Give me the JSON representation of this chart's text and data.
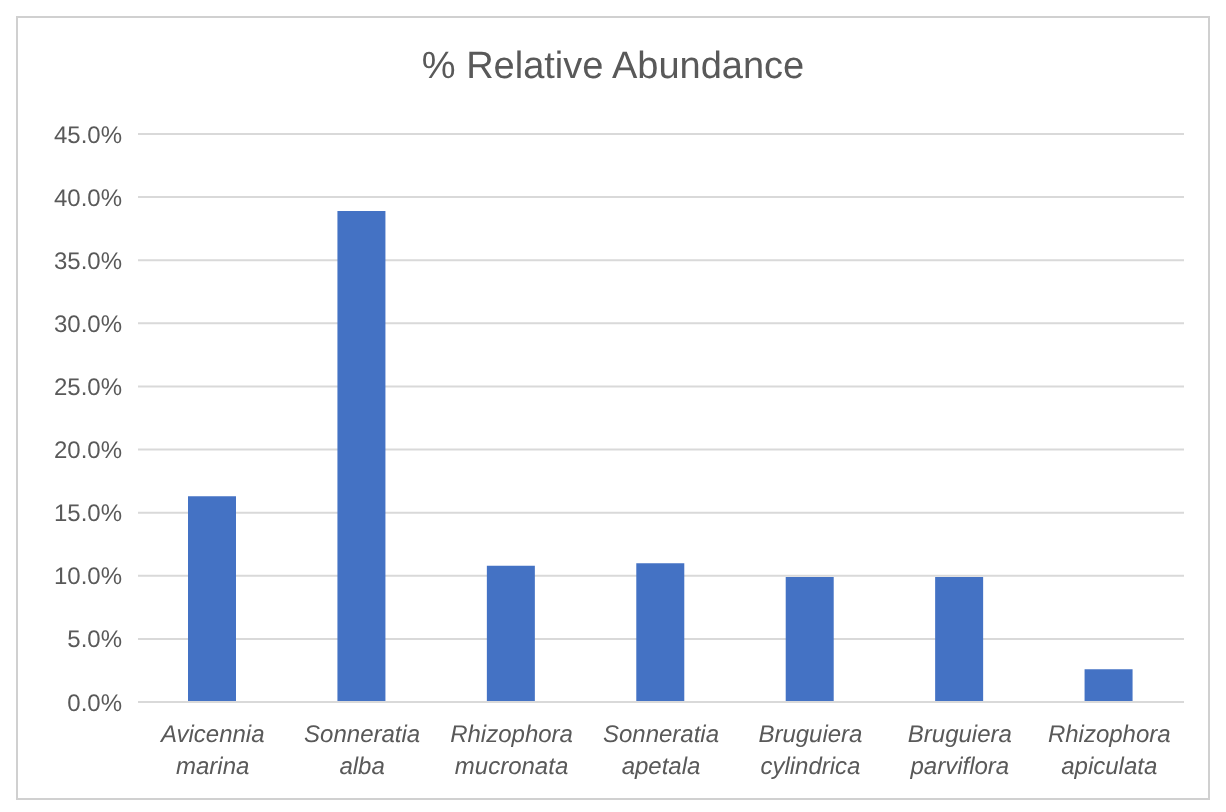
{
  "chart_data": {
    "type": "bar",
    "title": "% Relative Abundance",
    "categories": [
      "Avicennia marina",
      "Sonneratia alba",
      "Rhizophora mucronata",
      "Sonneratia apetala",
      "Bruguiera cylindrica",
      "Bruguiera parviflora",
      "Rhizophora apiculata"
    ],
    "values": [
      16.3,
      38.9,
      10.8,
      11.0,
      9.9,
      9.9,
      2.6
    ],
    "color": "#4472c4",
    "ylim": [
      0,
      45
    ],
    "yticks": [
      {
        "value": 0,
        "label": "0.0%"
      },
      {
        "value": 5,
        "label": "5.0%"
      },
      {
        "value": 10,
        "label": "10.0%"
      },
      {
        "value": 15,
        "label": "15.0%"
      },
      {
        "value": 20,
        "label": "20.0%"
      },
      {
        "value": 25,
        "label": "25.0%"
      },
      {
        "value": 30,
        "label": "30.0%"
      },
      {
        "value": 35,
        "label": "35.0%"
      },
      {
        "value": 40,
        "label": "40.0%"
      },
      {
        "value": 45,
        "label": "45.0%"
      }
    ],
    "grid": "y"
  }
}
